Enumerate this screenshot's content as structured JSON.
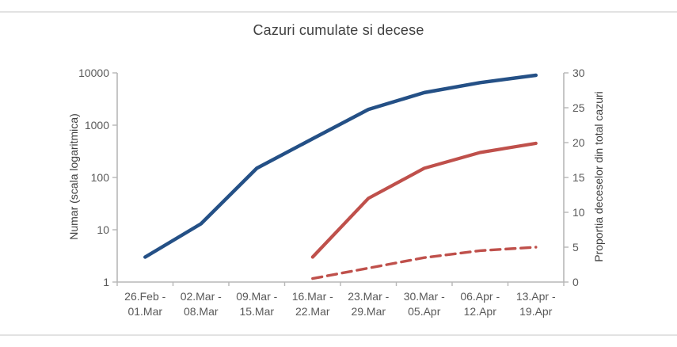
{
  "page": {
    "background": "#ffffff",
    "border_color": "#e2e2e2"
  },
  "chart_data": {
    "type": "line",
    "title": "Cazuri cumulate si decese",
    "categories": [
      [
        "26.Feb -",
        "01.Mar"
      ],
      [
        "02.Mar -",
        "08.Mar"
      ],
      [
        "09.Mar -",
        "15.Mar"
      ],
      [
        "16.Mar -",
        "22.Mar"
      ],
      [
        "23.Mar -",
        "29.Mar"
      ],
      [
        "30.Mar -",
        "05.Apr"
      ],
      [
        "06.Apr -",
        "12.Apr"
      ],
      [
        "13.Apr -",
        "19.Apr"
      ]
    ],
    "left_axis": {
      "label": "Numar (scala logaritmica)",
      "scale": "log",
      "ticks": [
        "1",
        "10",
        "100",
        "1000",
        "10000"
      ],
      "range": [
        1,
        10000
      ]
    },
    "right_axis": {
      "label": "Proportia deceselor din total cazuri",
      "scale": "linear",
      "ticks": [
        "0",
        "5",
        "10",
        "15",
        "20",
        "25",
        "30"
      ],
      "range": [
        0,
        30
      ]
    },
    "series": [
      {
        "name": "blue-solid-line",
        "axis": "left",
        "style": "solid",
        "color": "#245086",
        "stroke_width": 4.5,
        "values": [
          3,
          13,
          150,
          550,
          2000,
          4200,
          6500,
          9000
        ]
      },
      {
        "name": "red-solid-line",
        "axis": "left",
        "style": "solid",
        "color": "#bf504b",
        "stroke_width": 4.2,
        "values": [
          null,
          null,
          null,
          3,
          40,
          150,
          300,
          450
        ]
      },
      {
        "name": "red-dashed-line",
        "axis": "right",
        "style": "dashed",
        "color": "#bf504b",
        "stroke_width": 3.4,
        "values": [
          null,
          null,
          null,
          0.5,
          2,
          3.5,
          4.5,
          5
        ]
      }
    ],
    "legend": null,
    "grid": "off",
    "text_color": "#595959",
    "axis_line_color": "#b7b7b7"
  }
}
